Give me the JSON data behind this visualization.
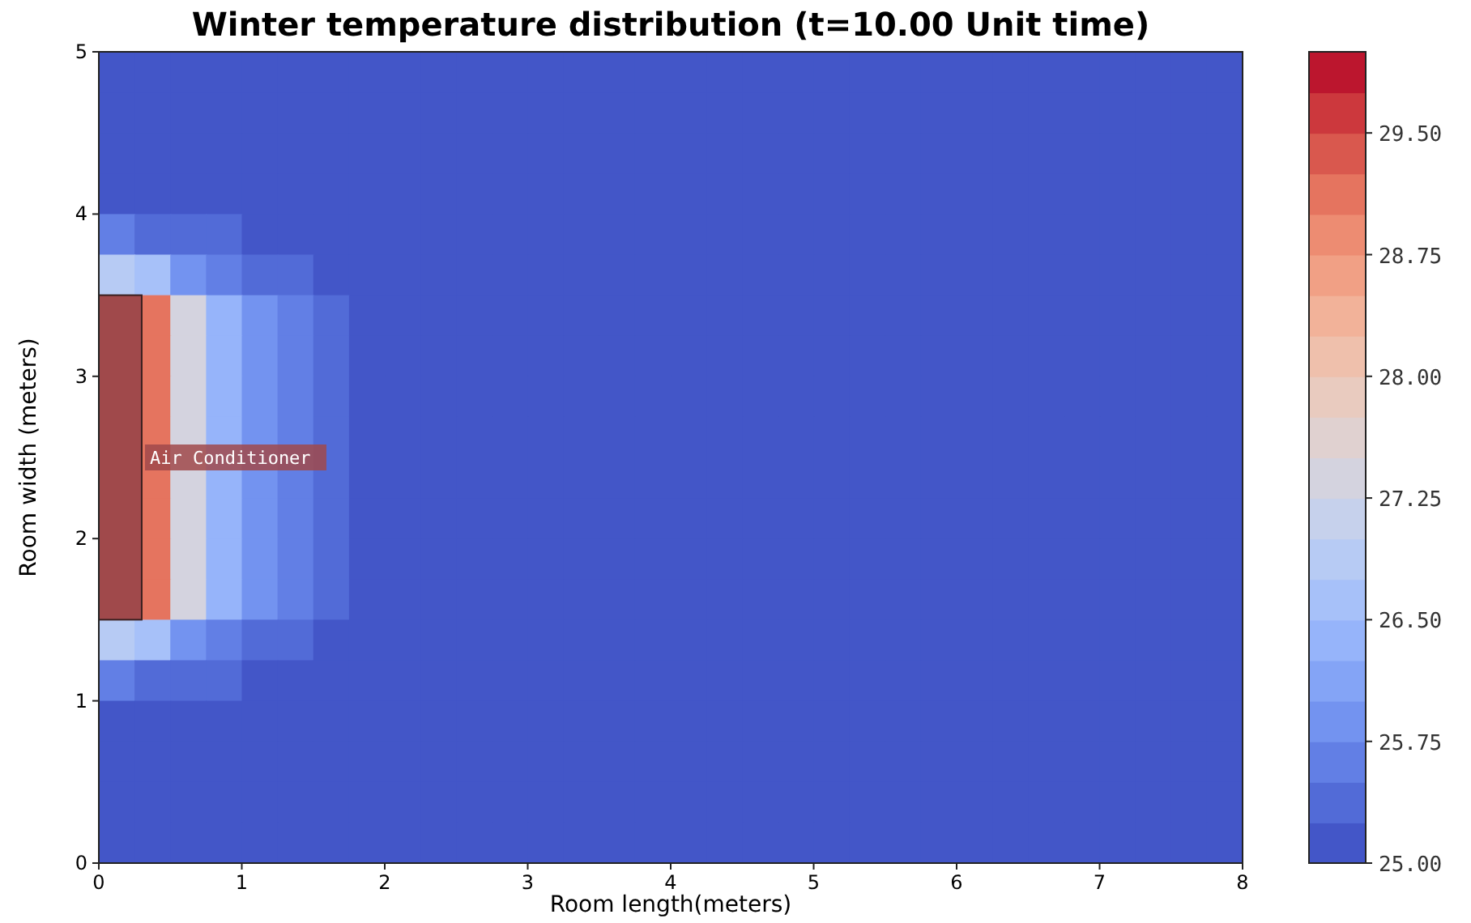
{
  "chart_data": {
    "type": "heatmap",
    "title": "Winter temperature distribution   (t=10.00 Unit time)",
    "xlabel": "Room length(meters)",
    "ylabel": "Room width  (meters)",
    "annotations": [
      "Air Conditioner"
    ],
    "x": [
      0.125,
      0.375,
      0.625,
      0.875,
      1.125,
      1.375,
      1.625,
      1.875,
      2.125,
      2.375,
      2.625,
      2.875,
      3.125,
      3.375,
      3.625,
      3.875,
      4.125,
      4.375,
      4.625,
      4.875,
      5.125,
      5.375,
      5.625,
      5.875,
      6.125,
      6.375,
      6.625,
      6.875,
      7.125,
      7.375,
      7.625,
      7.875
    ],
    "y": [
      4.875,
      4.625,
      4.375,
      4.125,
      3.875,
      3.625,
      3.375,
      3.125,
      2.875,
      2.625,
      2.375,
      2.125,
      1.875,
      1.625,
      1.375,
      1.125,
      0.875,
      0.625,
      0.375,
      0.125
    ],
    "xlim": [
      0,
      8
    ],
    "xticks": [
      0,
      1,
      2,
      3,
      4,
      5,
      6,
      7,
      8
    ],
    "ylim": [
      0,
      5
    ],
    "yticks": [
      0,
      1,
      2,
      3,
      4,
      5
    ],
    "clim": [
      25,
      30
    ],
    "cticks": [
      {
        "value": 25,
        "label": "25.00"
      },
      {
        "value": 25.75,
        "label": "25.75"
      },
      {
        "value": 26.5,
        "label": "26.50"
      },
      {
        "value": 27.25,
        "label": "27.25"
      },
      {
        "value": 28,
        "label": "28.00"
      },
      {
        "value": 28.75,
        "label": "28.75"
      },
      {
        "value": 29.5,
        "label": "29.50"
      }
    ],
    "cells": [
      [
        25,
        25,
        25,
        25,
        25,
        25,
        25,
        25,
        25,
        25,
        25,
        25,
        25,
        25,
        25,
        25,
        25,
        25,
        25,
        25,
        25,
        25,
        25,
        25,
        25,
        25,
        25,
        25,
        25,
        25,
        25,
        25
      ],
      [
        25,
        25,
        25,
        25,
        25,
        25,
        25,
        25,
        25,
        25,
        25,
        25,
        25,
        25,
        25,
        25,
        25,
        25,
        25,
        25,
        25,
        25,
        25,
        25,
        25,
        25,
        25,
        25,
        25,
        25,
        25,
        25
      ],
      [
        25,
        25,
        25,
        25,
        25,
        25,
        25,
        25,
        25,
        25,
        25,
        25,
        25,
        25,
        25,
        25,
        25,
        25,
        25,
        25,
        25,
        25,
        25,
        25,
        25,
        25,
        25,
        25,
        25,
        25,
        25,
        25
      ],
      [
        25,
        25,
        25,
        25,
        25,
        25,
        25,
        25,
        25,
        25,
        25,
        25,
        25,
        25,
        25,
        25,
        25,
        25,
        25,
        25,
        25,
        25,
        25,
        25,
        25,
        25,
        25,
        25,
        25,
        25,
        25,
        25
      ],
      [
        25.5,
        25.25,
        25.25,
        25.25,
        25,
        25,
        25,
        25,
        25,
        25,
        25,
        25,
        25,
        25,
        25,
        25,
        25,
        25,
        25,
        25,
        25,
        25,
        25,
        25,
        25,
        25,
        25,
        25,
        25,
        25,
        25,
        25
      ],
      [
        26.75,
        26.5,
        25.75,
        25.5,
        25.25,
        25.25,
        25,
        25,
        25,
        25,
        25,
        25,
        25,
        25,
        25,
        25,
        25,
        25,
        25,
        25,
        25,
        25,
        25,
        25,
        25,
        25,
        25,
        25,
        25,
        25,
        25,
        25
      ],
      [
        null,
        29,
        27.25,
        26.25,
        25.75,
        25.5,
        25.25,
        25,
        25,
        25,
        25,
        25,
        25,
        25,
        25,
        25,
        25,
        25,
        25,
        25,
        25,
        25,
        25,
        25,
        25,
        25,
        25,
        25,
        25,
        25,
        25,
        25
      ],
      [
        null,
        29,
        27.25,
        26.25,
        25.75,
        25.5,
        25.25,
        25,
        25,
        25,
        25,
        25,
        25,
        25,
        25,
        25,
        25,
        25,
        25,
        25,
        25,
        25,
        25,
        25,
        25,
        25,
        25,
        25,
        25,
        25,
        25,
        25
      ],
      [
        null,
        29,
        27.25,
        26.25,
        25.75,
        25.5,
        25.25,
        25,
        25,
        25,
        25,
        25,
        25,
        25,
        25,
        25,
        25,
        25,
        25,
        25,
        25,
        25,
        25,
        25,
        25,
        25,
        25,
        25,
        25,
        25,
        25,
        25
      ],
      [
        null,
        29,
        27.25,
        26.25,
        25.75,
        25.5,
        25.25,
        25,
        25,
        25,
        25,
        25,
        25,
        25,
        25,
        25,
        25,
        25,
        25,
        25,
        25,
        25,
        25,
        25,
        25,
        25,
        25,
        25,
        25,
        25,
        25,
        25
      ],
      [
        null,
        29,
        27.25,
        26.25,
        25.75,
        25.5,
        25.25,
        25,
        25,
        25,
        25,
        25,
        25,
        25,
        25,
        25,
        25,
        25,
        25,
        25,
        25,
        25,
        25,
        25,
        25,
        25,
        25,
        25,
        25,
        25,
        25,
        25
      ],
      [
        null,
        29,
        27.25,
        26.25,
        25.75,
        25.5,
        25.25,
        25,
        25,
        25,
        25,
        25,
        25,
        25,
        25,
        25,
        25,
        25,
        25,
        25,
        25,
        25,
        25,
        25,
        25,
        25,
        25,
        25,
        25,
        25,
        25,
        25
      ],
      [
        null,
        29,
        27.25,
        26.25,
        25.75,
        25.5,
        25.25,
        25,
        25,
        25,
        25,
        25,
        25,
        25,
        25,
        25,
        25,
        25,
        25,
        25,
        25,
        25,
        25,
        25,
        25,
        25,
        25,
        25,
        25,
        25,
        25,
        25
      ],
      [
        null,
        29,
        27.25,
        26.25,
        25.75,
        25.5,
        25.25,
        25,
        25,
        25,
        25,
        25,
        25,
        25,
        25,
        25,
        25,
        25,
        25,
        25,
        25,
        25,
        25,
        25,
        25,
        25,
        25,
        25,
        25,
        25,
        25,
        25
      ],
      [
        26.75,
        26.5,
        25.75,
        25.5,
        25.25,
        25.25,
        25,
        25,
        25,
        25,
        25,
        25,
        25,
        25,
        25,
        25,
        25,
        25,
        25,
        25,
        25,
        25,
        25,
        25,
        25,
        25,
        25,
        25,
        25,
        25,
        25,
        25
      ],
      [
        25.5,
        25.25,
        25.25,
        25.25,
        25,
        25,
        25,
        25,
        25,
        25,
        25,
        25,
        25,
        25,
        25,
        25,
        25,
        25,
        25,
        25,
        25,
        25,
        25,
        25,
        25,
        25,
        25,
        25,
        25,
        25,
        25,
        25
      ],
      [
        25,
        25,
        25,
        25,
        25,
        25,
        25,
        25,
        25,
        25,
        25,
        25,
        25,
        25,
        25,
        25,
        25,
        25,
        25,
        25,
        25,
        25,
        25,
        25,
        25,
        25,
        25,
        25,
        25,
        25,
        25,
        25
      ],
      [
        25,
        25,
        25,
        25,
        25,
        25,
        25,
        25,
        25,
        25,
        25,
        25,
        25,
        25,
        25,
        25,
        25,
        25,
        25,
        25,
        25,
        25,
        25,
        25,
        25,
        25,
        25,
        25,
        25,
        25,
        25,
        25
      ],
      [
        25,
        25,
        25,
        25,
        25,
        25,
        25,
        25,
        25,
        25,
        25,
        25,
        25,
        25,
        25,
        25,
        25,
        25,
        25,
        25,
        25,
        25,
        25,
        25,
        25,
        25,
        25,
        25,
        25,
        25,
        25,
        25
      ],
      [
        25,
        25,
        25,
        25,
        25,
        25,
        25,
        25,
        25,
        25,
        25,
        25,
        25,
        25,
        25,
        25,
        25,
        25,
        25,
        25,
        25,
        25,
        25,
        25,
        25,
        25,
        25,
        25,
        25,
        25,
        25,
        25
      ]
    ]
  }
}
